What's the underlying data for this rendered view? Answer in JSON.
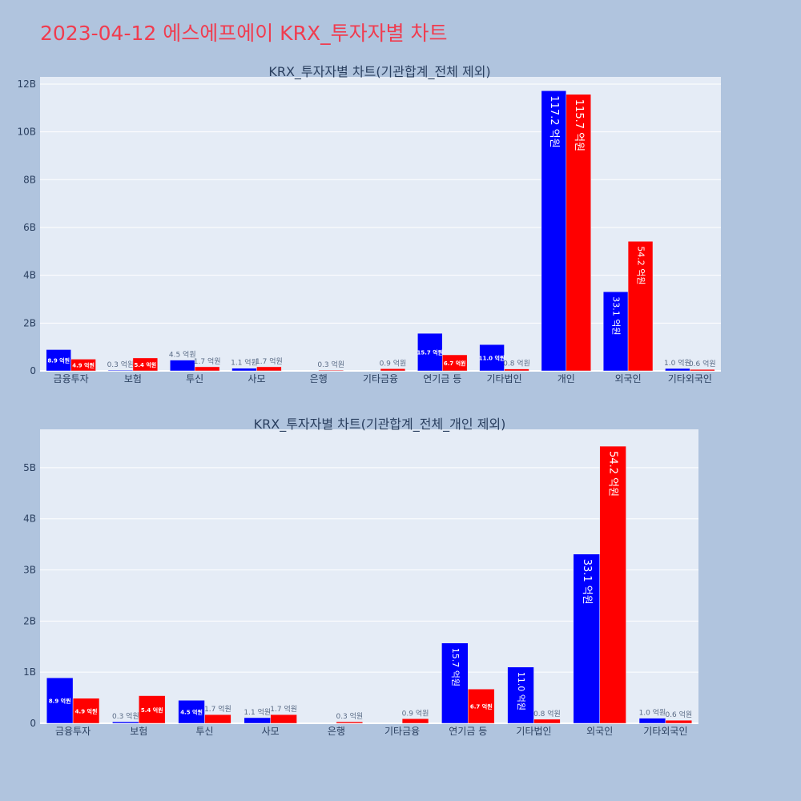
{
  "page": {
    "title": "2023-04-12 에스에프에이 KRX_투자자별 차트"
  },
  "colors": {
    "buy": "#0000ff",
    "sell": "#ff0000",
    "plot_bg": "#e5ecf6",
    "paper_bg": "#b0c4de",
    "title": "#f03c4f"
  },
  "chart_data": [
    {
      "type": "bar",
      "title": "KRX_투자자별 차트(기관합계_전체 제외)",
      "categories": [
        "금융투자",
        "보험",
        "투신",
        "사모",
        "은행",
        "기타금융",
        "연기금 등",
        "기타법인",
        "개인",
        "외국인",
        "기타외국인"
      ],
      "series": [
        {
          "values": [
            0.89,
            0.03,
            0.45,
            0.11,
            0,
            0,
            1.57,
            1.1,
            11.72,
            3.31,
            0.1
          ],
          "labels": [
            "8.9 억원",
            "0.3 억원",
            "4.5 억원",
            "1.1 억원",
            "",
            "",
            "15.7 억원",
            "11.0 억원",
            "117.2 억원",
            "33.1 억원",
            "1.0 억원"
          ]
        },
        {
          "values": [
            0.49,
            0.54,
            0.17,
            0.17,
            0.03,
            0.09,
            0.67,
            0.08,
            11.57,
            5.42,
            0.06
          ],
          "labels": [
            "4.9 억원",
            "5.4 억원",
            "1.7 억원",
            "1.7 억원",
            "0.3 억원",
            "0.9 억원",
            "6.7 억원",
            "0.8 억원",
            "115.7 억원",
            "54.2 억원",
            "0.6 억원"
          ]
        }
      ],
      "yticks": [
        {
          "v": 0,
          "label": "0"
        },
        {
          "v": 2,
          "label": "2B"
        },
        {
          "v": 4,
          "label": "4B"
        },
        {
          "v": 6,
          "label": "6B"
        },
        {
          "v": 8,
          "label": "8B"
        },
        {
          "v": 10,
          "label": "10B"
        },
        {
          "v": 12,
          "label": "12B"
        }
      ],
      "ylim": [
        0,
        12.3
      ],
      "grid": true
    },
    {
      "type": "bar",
      "title": "KRX_투자자별 차트(기관합계_전체_개인 제외)",
      "categories": [
        "금융투자",
        "보험",
        "투신",
        "사모",
        "은행",
        "기타금융",
        "연기금 등",
        "기타법인",
        "외국인",
        "기타외국인"
      ],
      "series": [
        {
          "values": [
            0.89,
            0.03,
            0.45,
            0.11,
            0,
            0,
            1.57,
            1.1,
            3.31,
            0.1
          ],
          "labels": [
            "8.9 억원",
            "0.3 억원",
            "4.5 억원",
            "1.1 억원",
            "",
            "",
            "15.7 억원",
            "11.0 억원",
            "33.1 억원",
            "1.0 억원"
          ]
        },
        {
          "values": [
            0.49,
            0.54,
            0.17,
            0.17,
            0.03,
            0.09,
            0.67,
            0.08,
            5.42,
            0.06
          ],
          "labels": [
            "4.9 억원",
            "5.4 억원",
            "1.7 억원",
            "1.7 억원",
            "0.3 억원",
            "0.9 억원",
            "6.7 억원",
            "0.8 억원",
            "54.2 억원",
            "0.6 억원"
          ]
        }
      ],
      "yticks": [
        {
          "v": 0,
          "label": "0"
        },
        {
          "v": 1,
          "label": "1B"
        },
        {
          "v": 2,
          "label": "2B"
        },
        {
          "v": 3,
          "label": "3B"
        },
        {
          "v": 4,
          "label": "4B"
        },
        {
          "v": 5,
          "label": "5B"
        }
      ],
      "ylim": [
        0,
        5.75
      ],
      "grid": true
    }
  ]
}
